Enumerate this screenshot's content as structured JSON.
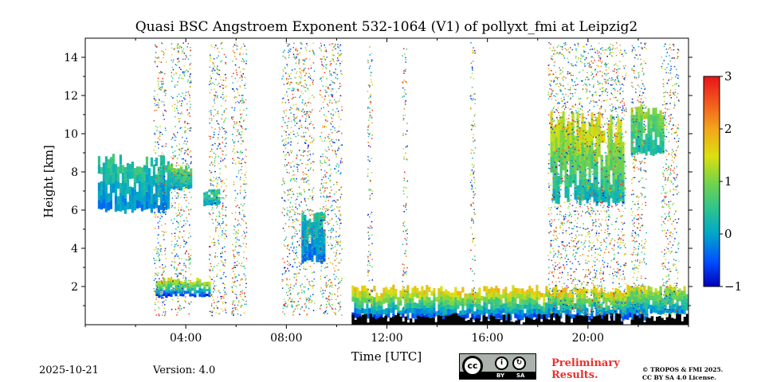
{
  "chart_data": {
    "type": "heatmap",
    "title": "Quasi BSC Angstroem Exponent 532-1064 (V1) of pollyxt_fmi at Leipzig2",
    "xlabel": "Time [UTC]",
    "ylabel": "Height [km]",
    "xlim_hours": [
      0,
      24
    ],
    "ylim_km": [
      0,
      15
    ],
    "x_ticks": [
      {
        "hour": 4,
        "label": "04:00"
      },
      {
        "hour": 8,
        "label": "08:00"
      },
      {
        "hour": 12,
        "label": "12:00"
      },
      {
        "hour": 16,
        "label": "16:00"
      },
      {
        "hour": 20,
        "label": "20:00"
      }
    ],
    "x_minor_hours": [
      0,
      2,
      6,
      10,
      14,
      18,
      22,
      24
    ],
    "y_ticks": [
      2,
      4,
      6,
      8,
      10,
      12,
      14
    ],
    "colorbar": {
      "min": -1,
      "max": 3,
      "ticks": [
        -1,
        0,
        1,
        2,
        3
      ],
      "colormap": "jet"
    },
    "regions": [
      {
        "name": "boundary layer aerosol",
        "t_start": 10.6,
        "t_end": 22.3,
        "h_bottom": 0.2,
        "h_top": 2.1,
        "value_low": -0.7,
        "value_high": 1.9
      },
      {
        "name": "boundary layer aerosol evening",
        "t_start": 21.7,
        "t_end": 24.0,
        "h_bottom": 0.5,
        "h_top": 2.1,
        "value_low": -0.3,
        "value_high": 1.4
      },
      {
        "name": "cirrus cloud",
        "t_start": 18.5,
        "t_end": 21.4,
        "h_bottom": 6.2,
        "h_top": 11.3,
        "value_low": 0.1,
        "value_high": 1.6
      },
      {
        "name": "cirrus cloud late",
        "t_start": 21.7,
        "t_end": 23.0,
        "h_bottom": 8.8,
        "h_top": 11.6,
        "value_low": 0.2,
        "value_high": 1.1
      },
      {
        "name": "early mid-level layer",
        "t_start": 0.5,
        "t_end": 3.3,
        "h_bottom": 5.8,
        "h_top": 9.0,
        "value_low": -0.2,
        "value_high": 0.5
      },
      {
        "name": "layer near 04:00",
        "t_start": 3.3,
        "t_end": 4.2,
        "h_bottom": 7.0,
        "h_top": 8.5,
        "value_low": -0.1,
        "value_high": 0.9
      },
      {
        "name": "low layer near 04:00",
        "t_start": 2.8,
        "t_end": 4.9,
        "h_bottom": 1.4,
        "h_top": 2.5,
        "value_low": -0.8,
        "value_high": 1.6
      },
      {
        "name": "layer near 05:00",
        "t_start": 4.7,
        "t_end": 5.3,
        "h_bottom": 6.2,
        "h_top": 7.2,
        "value_low": 0.0,
        "value_high": 0.6
      },
      {
        "name": "descending layer 09:00",
        "t_start": 8.6,
        "t_end": 9.5,
        "h_bottom": 3.1,
        "h_top": 6.2,
        "value_low": -0.4,
        "value_high": 0.4
      }
    ]
  },
  "footer": {
    "date": "2025-10-21",
    "version": "Version: 4.0",
    "preliminary_line1": "Preliminary",
    "preliminary_line2": "Results.",
    "copyright_line1": "© TROPOS & FMI 2025.",
    "copyright_line2": "CC BY SA 4.0 License.",
    "cc_label": "cc",
    "by_label": "BY",
    "sa_label": "SA"
  }
}
